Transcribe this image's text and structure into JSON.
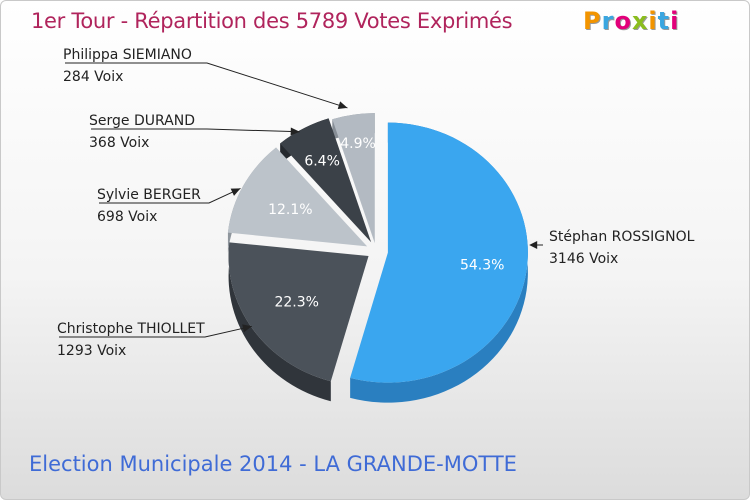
{
  "header": {
    "title": "1er Tour - Répartition des 5789 Votes Exprimés"
  },
  "footer": {
    "title": "Election Municipale 2014 - LA GRANDE-MOTTE"
  },
  "logo": {
    "letters": [
      "P",
      "r",
      "o",
      "x",
      "i",
      "t",
      "i"
    ],
    "colors": [
      "#f29400",
      "#3aa6e0",
      "#e2007a",
      "#8bbd1e",
      "#f29400",
      "#3aa6e0",
      "#e2007a"
    ]
  },
  "chart_data": {
    "type": "pie",
    "title": "1er Tour - Répartition des 5789 Votes Exprimés",
    "total": 5789,
    "slices": [
      {
        "name": "Stéphan ROSSIGNOL",
        "votes_label": "3146 Voix",
        "value": 3146,
        "percent": 54.3,
        "percent_label": "54.3%",
        "color": "#3aa6ef",
        "side_color": "#2a7fc0"
      },
      {
        "name": "Christophe THIOLLET",
        "votes_label": "1293 Voix",
        "value": 1293,
        "percent": 22.3,
        "percent_label": "22.3%",
        "color": "#4b525a",
        "side_color": "#30353b"
      },
      {
        "name": "Sylvie BERGER",
        "votes_label": "698 Voix",
        "value": 698,
        "percent": 12.1,
        "percent_label": "12.1%",
        "color": "#bcc3ca",
        "side_color": "#8f969d"
      },
      {
        "name": "Serge DURAND",
        "votes_label": "368 Voix",
        "value": 368,
        "percent": 6.4,
        "percent_label": "6.4%",
        "color": "#3b4148",
        "side_color": "#25292e"
      },
      {
        "name": "Philippa SIEMIANO",
        "votes_label": "284 Voix",
        "value": 284,
        "percent": 4.9,
        "percent_label": "4.9%",
        "color": "#b3bac2",
        "side_color": "#878e96"
      }
    ]
  }
}
